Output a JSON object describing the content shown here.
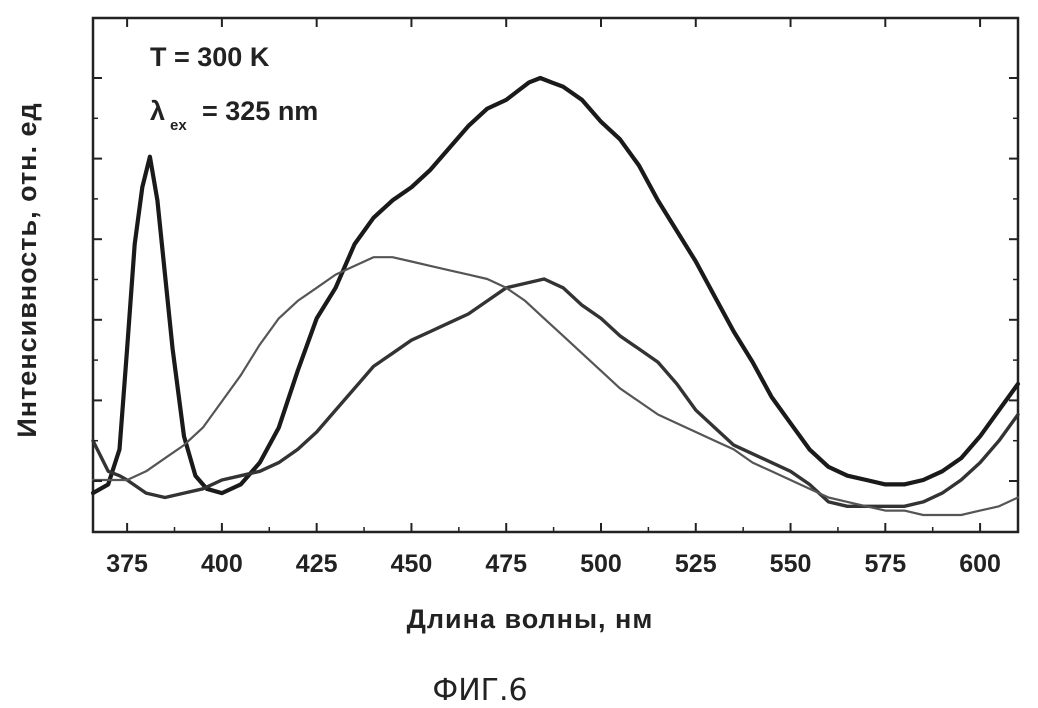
{
  "chart_data": {
    "type": "line",
    "xlabel": "Длина волны, нм",
    "ylabel": "Интенсивность, отн. ед",
    "caption": "ФИГ.6",
    "annotations": {
      "temperature": "T = 300 K",
      "lambda_symbol": "λ",
      "lambda_sub": "ex",
      "lambda_value": "= 325 nm"
    },
    "xlim": [
      366,
      610
    ],
    "ylim": [
      0,
      1.0
    ],
    "x_ticks": [
      375,
      400,
      425,
      450,
      475,
      500,
      525,
      550,
      575,
      600
    ],
    "x_tick_labels": [
      "375",
      "400",
      "425",
      "450",
      "475",
      "500",
      "525",
      "550",
      "575",
      "600"
    ],
    "y_tick_count": 5,
    "grid": false,
    "legend": "none",
    "series": [
      {
        "color": "#1a1a1a",
        "weight": "bold",
        "x": [
          366,
          370,
          373,
          375,
          377,
          379,
          381,
          383,
          385,
          387,
          390,
          393,
          396,
          400,
          405,
          410,
          415,
          420,
          425,
          430,
          435,
          440,
          445,
          450,
          455,
          460,
          465,
          470,
          475,
          478,
          481,
          484,
          487,
          490,
          495,
          500,
          505,
          510,
          515,
          520,
          525,
          530,
          535,
          540,
          545,
          550,
          555,
          560,
          565,
          570,
          575,
          580,
          585,
          590,
          595,
          600,
          605,
          610
        ],
        "y": [
          0.05,
          0.07,
          0.15,
          0.38,
          0.62,
          0.75,
          0.82,
          0.72,
          0.55,
          0.38,
          0.18,
          0.09,
          0.06,
          0.05,
          0.07,
          0.12,
          0.2,
          0.33,
          0.45,
          0.52,
          0.62,
          0.68,
          0.72,
          0.75,
          0.79,
          0.84,
          0.89,
          0.93,
          0.95,
          0.97,
          0.99,
          1.0,
          0.99,
          0.98,
          0.95,
          0.9,
          0.86,
          0.8,
          0.72,
          0.65,
          0.58,
          0.5,
          0.42,
          0.35,
          0.27,
          0.21,
          0.15,
          0.11,
          0.09,
          0.08,
          0.07,
          0.07,
          0.08,
          0.1,
          0.13,
          0.18,
          0.24,
          0.3
        ]
      },
      {
        "color": "#333333",
        "weight": "medium",
        "x": [
          366,
          370,
          373,
          375,
          380,
          385,
          390,
          395,
          400,
          405,
          410,
          415,
          420,
          425,
          430,
          435,
          440,
          445,
          450,
          455,
          460,
          465,
          470,
          475,
          480,
          485,
          490,
          495,
          500,
          505,
          510,
          515,
          520,
          525,
          530,
          535,
          540,
          545,
          550,
          555,
          560,
          565,
          570,
          575,
          580,
          585,
          590,
          595,
          600,
          605,
          610
        ],
        "y": [
          0.17,
          0.1,
          0.09,
          0.08,
          0.05,
          0.04,
          0.05,
          0.06,
          0.08,
          0.09,
          0.1,
          0.12,
          0.15,
          0.19,
          0.24,
          0.29,
          0.34,
          0.37,
          0.4,
          0.42,
          0.44,
          0.46,
          0.49,
          0.52,
          0.53,
          0.54,
          0.52,
          0.48,
          0.45,
          0.41,
          0.38,
          0.35,
          0.3,
          0.24,
          0.2,
          0.16,
          0.14,
          0.12,
          0.1,
          0.07,
          0.03,
          0.02,
          0.02,
          0.02,
          0.02,
          0.03,
          0.05,
          0.08,
          0.12,
          0.17,
          0.23
        ]
      },
      {
        "color": "#555555",
        "weight": "thin",
        "x": [
          366,
          370,
          375,
          380,
          385,
          390,
          395,
          400,
          405,
          410,
          415,
          420,
          425,
          430,
          435,
          440,
          445,
          450,
          455,
          460,
          465,
          470,
          475,
          480,
          485,
          490,
          495,
          500,
          505,
          510,
          515,
          520,
          525,
          530,
          535,
          540,
          545,
          550,
          555,
          560,
          565,
          570,
          575,
          580,
          585,
          590,
          595,
          600,
          605,
          610
        ],
        "y": [
          0.08,
          0.08,
          0.08,
          0.1,
          0.13,
          0.16,
          0.2,
          0.26,
          0.32,
          0.39,
          0.45,
          0.49,
          0.52,
          0.55,
          0.57,
          0.59,
          0.59,
          0.58,
          0.57,
          0.56,
          0.55,
          0.54,
          0.52,
          0.49,
          0.45,
          0.41,
          0.37,
          0.33,
          0.29,
          0.26,
          0.23,
          0.21,
          0.19,
          0.17,
          0.15,
          0.12,
          0.1,
          0.08,
          0.06,
          0.04,
          0.03,
          0.02,
          0.01,
          0.01,
          0.0,
          0.0,
          0.0,
          0.01,
          0.02,
          0.04
        ]
      }
    ]
  }
}
